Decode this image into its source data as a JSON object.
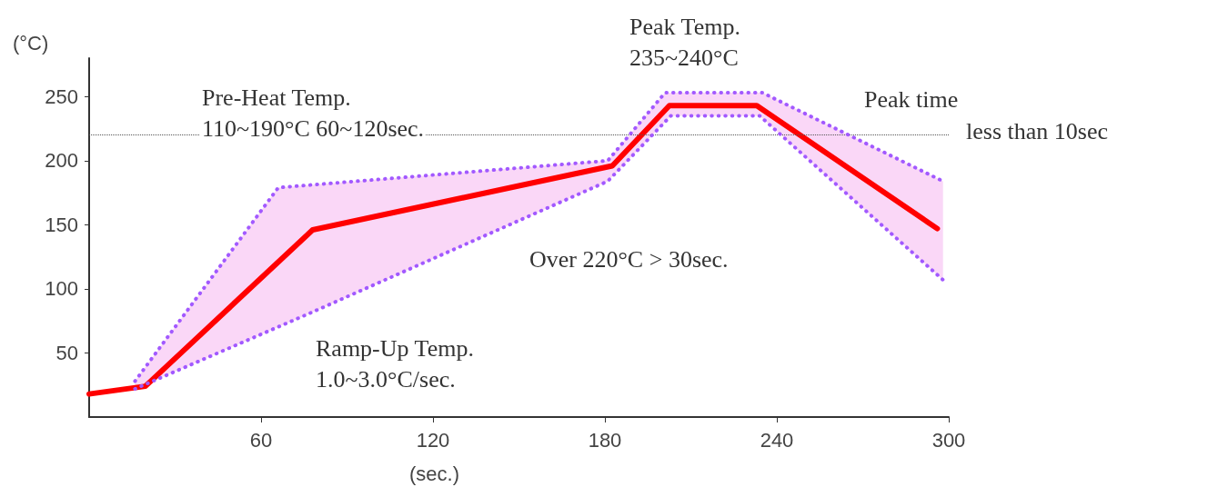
{
  "chart_data": {
    "type": "line",
    "xlabel": "(sec.)",
    "ylabel": "(°C)",
    "xlim": [
      0,
      300
    ],
    "xticks": [
      60,
      120,
      180,
      240,
      300
    ],
    "ylim": [
      0,
      280
    ],
    "yticks": [
      50,
      100,
      150,
      200,
      250
    ],
    "grid": false,
    "marker": "none",
    "series": [
      {
        "color": "#a259ff",
        "line_style": "dotted",
        "x": [
          16,
          66,
          181,
          201,
          235,
          298
        ],
        "values": [
          28,
          179,
          200,
          253,
          253,
          184
        ]
      },
      {
        "color": "#a259ff",
        "line_style": "dotted",
        "x": [
          16,
          77,
          181,
          203,
          234,
          298
        ],
        "values": [
          22,
          81,
          184,
          235,
          235,
          107
        ]
      },
      {
        "color": "#ff0000",
        "line_style": "solid",
        "x": [
          0,
          19.6,
          78,
          182.6,
          202.5,
          233,
          296
        ],
        "values": [
          18,
          24,
          146,
          196,
          243,
          243,
          147
        ]
      }
    ],
    "ref_lines": [
      {
        "axis": "y",
        "value": 220,
        "color": "#555555",
        "line_style": "dotted"
      }
    ],
    "annotations": [
      "Pre-Heat Temp.\n110~190°C 60~120sec.",
      "Peak Temp.\n235~240°C",
      "Peak time",
      "less than 10sec",
      "Over 220°C > 30sec.",
      "Ramp-Up Temp.\n1.0~3.0°C/sec."
    ]
  }
}
